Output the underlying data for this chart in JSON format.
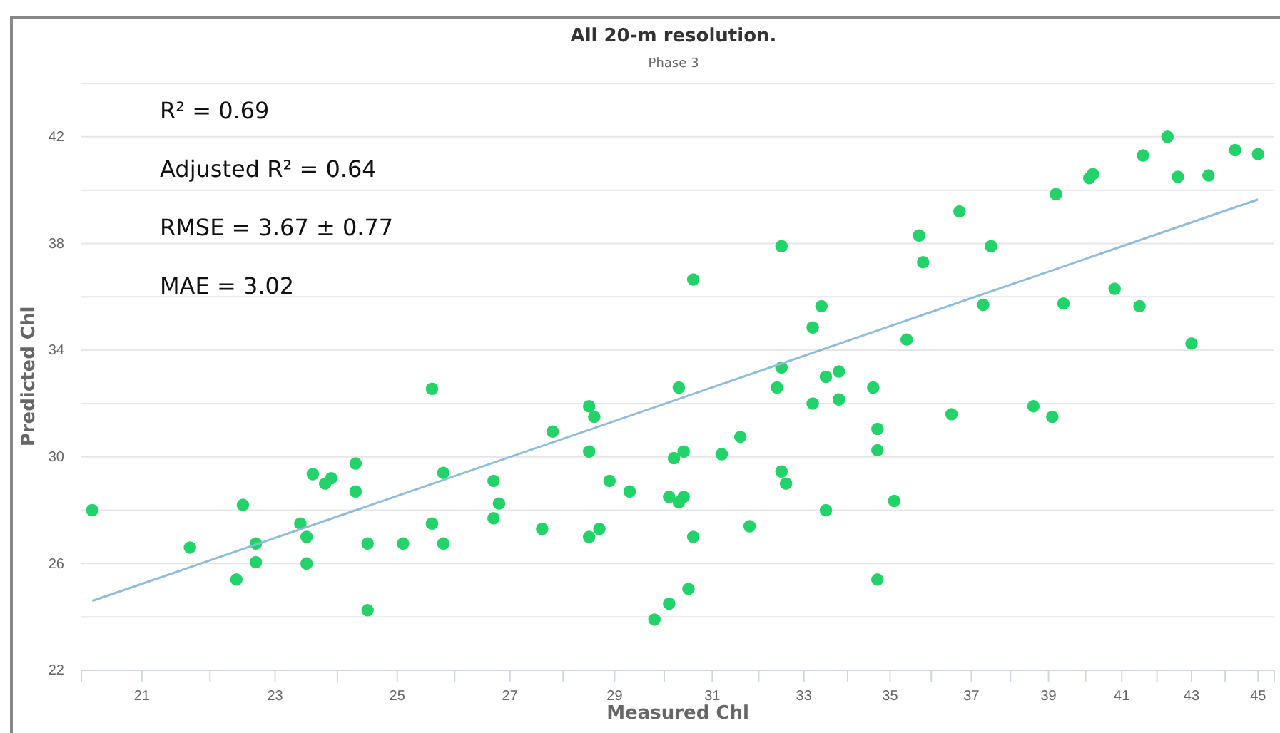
{
  "chart_data": {
    "type": "scatter",
    "title": "All 20-m resolution.",
    "subtitle": "Phase 3",
    "xlabel": "Measured Chl",
    "ylabel": "Predicted Chl",
    "log": "x",
    "grid": "y",
    "marker": "circle",
    "xlim": [
      20.15,
      45.5
    ],
    "ylim": [
      22,
      44
    ],
    "xticks": [
      21,
      {
        "value": 22,
        "label": null
      },
      23,
      {
        "value": 24,
        "label": null
      },
      25,
      {
        "value": 26,
        "label": null
      },
      27,
      {
        "value": 28,
        "label": null
      },
      29,
      {
        "value": 30,
        "label": null
      },
      31,
      {
        "value": 32,
        "label": null
      },
      33,
      {
        "value": 34,
        "label": null
      },
      35,
      {
        "value": 36,
        "label": null
      },
      37,
      {
        "value": 38,
        "label": null
      },
      39,
      {
        "value": 40,
        "label": null
      },
      41,
      {
        "value": 42,
        "label": null
      },
      43,
      {
        "value": 44,
        "label": null
      },
      45
    ],
    "yticks": [
      22,
      {
        "value": 24,
        "label": null
      },
      26,
      {
        "value": 28,
        "label": null
      },
      30,
      {
        "value": 32,
        "label": null
      },
      34,
      {
        "value": 36,
        "label": null
      },
      38,
      {
        "value": 40,
        "label": null
      },
      42,
      {
        "value": 44,
        "label": null
      }
    ],
    "annotations": [
      "R² = 0.69",
      "Adjusted R² = 0.64",
      "RMSE = 3.67 ± 0.77",
      "MAE = 3.02"
    ],
    "series": [
      {
        "color": "#22d36a",
        "x": [
          20.3,
          21.7,
          22.5,
          22.4,
          22.7,
          22.7,
          23.4,
          23.5,
          23.5,
          23.6,
          23.8,
          23.9,
          24.3,
          24.3,
          24.5,
          24.5,
          25.1,
          25.6,
          25.6,
          25.8,
          25.8,
          26.7,
          26.8,
          26.7,
          27.6,
          27.8,
          28.5,
          28.6,
          28.5,
          28.5,
          28.7,
          28.9,
          29.3,
          29.8,
          30.1,
          30.1,
          30.2,
          30.3,
          30.3,
          30.4,
          30.4,
          30.5,
          30.6,
          30.6,
          31.2,
          31.6,
          31.8,
          32.5,
          32.4,
          32.5,
          32.5,
          32.6,
          33.2,
          33.4,
          33.2,
          33.5,
          33.5,
          33.8,
          33.8,
          34.6,
          34.7,
          34.7,
          34.7,
          35.1,
          35.4,
          35.7,
          35.8,
          36.5,
          36.7,
          37.3,
          37.5,
          38.6,
          39.1,
          39.2,
          39.4,
          40.1,
          40.2,
          40.8,
          41.5,
          41.6,
          42.3,
          42.6,
          43.0,
          43.5,
          44.3,
          45.0
        ],
        "values": [
          28.0,
          26.6,
          28.2,
          25.4,
          26.75,
          26.05,
          27.5,
          27.0,
          26.0,
          29.35,
          29.0,
          29.2,
          29.75,
          28.7,
          26.75,
          24.25,
          26.75,
          32.55,
          27.5,
          29.4,
          26.75,
          29.1,
          28.25,
          27.7,
          27.3,
          30.95,
          31.9,
          31.5,
          30.2,
          27.0,
          27.3,
          29.1,
          28.7,
          23.9,
          24.5,
          28.5,
          29.95,
          32.6,
          28.3,
          28.5,
          30.2,
          25.05,
          36.65,
          27.0,
          30.1,
          30.75,
          27.4,
          37.9,
          32.6,
          33.35,
          29.45,
          29.0,
          34.85,
          35.65,
          32.0,
          33.0,
          28.0,
          33.2,
          32.15,
          32.6,
          31.05,
          30.25,
          25.4,
          28.35,
          34.4,
          38.3,
          37.3,
          31.6,
          39.2,
          35.7,
          37.9,
          31.9,
          31.5,
          39.85,
          35.75,
          40.45,
          40.6,
          36.3,
          35.65,
          41.3,
          42.0,
          40.5,
          34.25,
          40.55,
          41.5,
          41.35
        ]
      },
      {
        "type": "line",
        "color": "#8fbcd8",
        "marker": "none",
        "x": [
          20.3,
          45.0
        ],
        "values": [
          24.6,
          39.65
        ]
      }
    ]
  }
}
